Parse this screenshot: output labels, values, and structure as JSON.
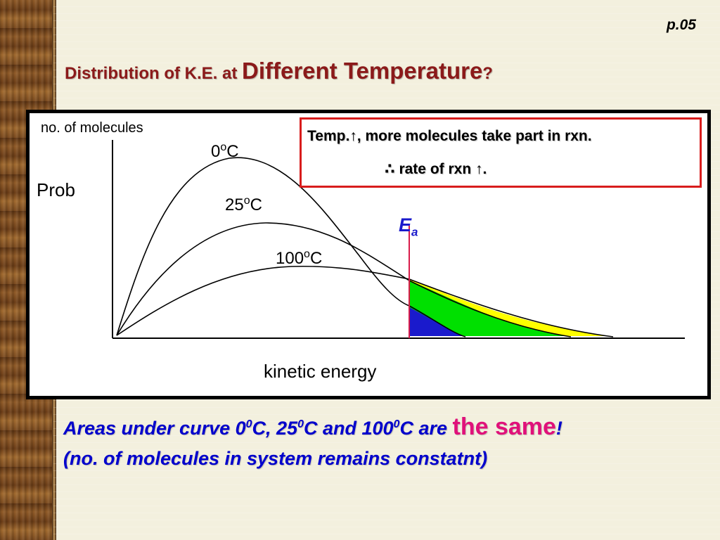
{
  "slide": {
    "page_number": "p.05",
    "title_part1": "Distribution of K.E. at ",
    "title_part2": "Different Temperature",
    "title_part3": "?"
  },
  "diagram": {
    "y_axis_label": "no. of molecules",
    "y_axis_symbol": "Prob",
    "x_axis_label": "kinetic energy",
    "curve_labels": [
      {
        "value": "0",
        "unit": "C",
        "degree": "o"
      },
      {
        "value": "25",
        "unit": "C",
        "degree": "o"
      },
      {
        "value": "100",
        "unit": "C",
        "degree": "o"
      }
    ],
    "threshold_label": "E",
    "threshold_subscript": "a",
    "note": {
      "line1_text": "Temp.",
      "line1_arrow": "↑",
      "line1_rest": ", more molecules take part in rxn.",
      "line2_therefore": "∴",
      "line2_text": " rate of rxn ",
      "line2_arrow": "↑",
      "line2_end": "."
    },
    "colors": {
      "frame": "#000000",
      "note_border": "#d81c1c",
      "threshold_line": "#d81c4a",
      "shade_0C": "#1a1acc",
      "shade_25C": "#00e000",
      "shade_100C": "#ffff00"
    }
  },
  "caption": {
    "line1_a": "Areas under curve 0",
    "sup1": "0",
    "line1_b": "C, 25",
    "sup2": "0",
    "line1_c": "C and 100",
    "sup3": "0",
    "line1_d": "C are ",
    "highlight": "the same",
    "exclaim": "!",
    "line2": "(no. of molecules in system remains constatnt)"
  }
}
